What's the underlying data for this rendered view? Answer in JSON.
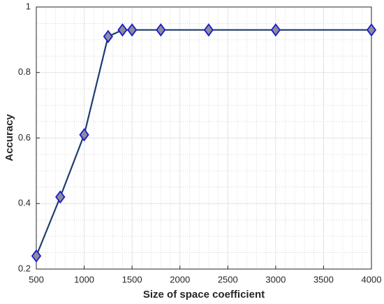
{
  "chart_data": {
    "type": "line",
    "xlabel": "Size of space coefficient",
    "ylabel": "Accuracy",
    "x": [
      500,
      750,
      1000,
      1250,
      1400,
      1500,
      1800,
      2300,
      3000,
      4000
    ],
    "series": [
      {
        "color": "#1f3d6e",
        "marker_fill": "#8c8c9a",
        "marker_edge": "#1a1ad0",
        "values": [
          0.24,
          0.42,
          0.61,
          0.91,
          0.93,
          0.93,
          0.93,
          0.93,
          0.93,
          0.93
        ]
      }
    ],
    "xlim": [
      500,
      4000
    ],
    "xticks": [
      500,
      1000,
      1500,
      2000,
      2500,
      3000,
      3500,
      4000
    ],
    "ylim": [
      0.2,
      1
    ],
    "yticks": [
      0.2,
      0.4,
      0.6,
      0.8,
      1
    ],
    "grid": true,
    "minor_grid": true
  }
}
